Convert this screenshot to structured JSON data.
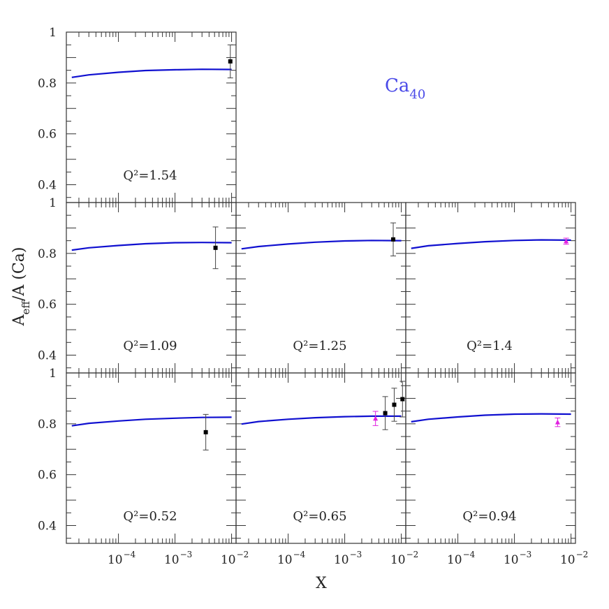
{
  "figure": {
    "title": "Ca",
    "title_subscript": "40",
    "xlabel": "X",
    "ylabel": "A",
    "ylabel_subscript": "eff",
    "ylabel_rest": "/A  (Ca)",
    "title_color": "#4a4ae8",
    "curve_color": "#1010d0",
    "point_color": "#000000",
    "alt_point_color": "#e020e0",
    "y_tick_labels": [
      "0.4",
      "0.6",
      "0.8",
      "1"
    ],
    "x_tick_labels": [
      {
        "base": "10",
        "exp": "−4"
      },
      {
        "base": "10",
        "exp": "−3"
      },
      {
        "base": "10",
        "exp": "−2"
      }
    ]
  },
  "chart_data": [
    {
      "type": "line",
      "panel": "top-left",
      "q2_prefix": "Q²=",
      "q2_value": "1.54",
      "x_scale": "log",
      "xlim": [
        1.2e-05,
        0.012
      ],
      "ylim": [
        0.33,
        1.0
      ],
      "series": [
        {
          "x": [
            1.5e-05,
            3e-05,
            0.0001,
            0.0003,
            0.001,
            0.003,
            0.01
          ],
          "y": [
            0.822,
            0.832,
            0.842,
            0.849,
            0.852,
            0.854,
            0.853
          ]
        }
      ],
      "points": [
        {
          "x": 0.0095,
          "y": 0.885,
          "err": 0.065,
          "marker": "square"
        }
      ]
    },
    {
      "type": "line",
      "panel": "middle-left",
      "q2_prefix": "Q²=",
      "q2_value": "1.09",
      "x_scale": "log",
      "xlim": [
        1.2e-05,
        0.012
      ],
      "ylim": [
        0.33,
        1.0
      ],
      "series": [
        {
          "x": [
            1.5e-05,
            3e-05,
            0.0001,
            0.0003,
            0.001,
            0.003,
            0.01
          ],
          "y": [
            0.813,
            0.822,
            0.831,
            0.838,
            0.842,
            0.843,
            0.842
          ]
        }
      ],
      "points": [
        {
          "x": 0.0052,
          "y": 0.822,
          "err": 0.082,
          "marker": "square"
        }
      ]
    },
    {
      "type": "line",
      "panel": "middle-center",
      "q2_prefix": "Q²=",
      "q2_value": "1.25",
      "x_scale": "log",
      "xlim": [
        1.2e-05,
        0.012
      ],
      "ylim": [
        0.33,
        1.0
      ],
      "series": [
        {
          "x": [
            1.5e-05,
            3e-05,
            0.0001,
            0.0003,
            0.001,
            0.003,
            0.01
          ],
          "y": [
            0.818,
            0.827,
            0.837,
            0.844,
            0.849,
            0.851,
            0.85
          ]
        }
      ],
      "points": [
        {
          "x": 0.0072,
          "y": 0.855,
          "err": 0.065,
          "marker": "square"
        }
      ]
    },
    {
      "type": "line",
      "panel": "middle-right",
      "q2_prefix": "Q²=",
      "q2_value": "1.4",
      "x_scale": "log",
      "xlim": [
        1.2e-05,
        0.012
      ],
      "ylim": [
        0.33,
        1.0
      ],
      "series": [
        {
          "x": [
            1.5e-05,
            3e-05,
            0.0001,
            0.0003,
            0.001,
            0.003,
            0.01
          ],
          "y": [
            0.82,
            0.83,
            0.839,
            0.846,
            0.851,
            0.853,
            0.852
          ]
        }
      ],
      "points": [
        {
          "x": 0.0082,
          "y": 0.848,
          "err": 0.012,
          "marker": "triangle"
        }
      ]
    },
    {
      "type": "line",
      "panel": "bottom-left",
      "q2_prefix": "Q²=",
      "q2_value": "0.52",
      "x_scale": "log",
      "xlim": [
        1.2e-05,
        0.012
      ],
      "ylim": [
        0.33,
        1.0
      ],
      "series": [
        {
          "x": [
            1.5e-05,
            3e-05,
            0.0001,
            0.0003,
            0.001,
            0.003,
            0.01
          ],
          "y": [
            0.792,
            0.802,
            0.811,
            0.818,
            0.822,
            0.825,
            0.826
          ]
        }
      ],
      "points": [
        {
          "x": 0.0035,
          "y": 0.767,
          "err": 0.07,
          "marker": "square"
        }
      ]
    },
    {
      "type": "line",
      "panel": "bottom-center",
      "q2_prefix": "Q²=",
      "q2_value": "0.65",
      "x_scale": "log",
      "xlim": [
        1.2e-05,
        0.012
      ],
      "ylim": [
        0.33,
        1.0
      ],
      "series": [
        {
          "x": [
            1.5e-05,
            3e-05,
            0.0001,
            0.0003,
            0.001,
            0.003,
            0.01
          ],
          "y": [
            0.799,
            0.809,
            0.818,
            0.824,
            0.828,
            0.83,
            0.83
          ]
        }
      ],
      "points": [
        {
          "x": 0.0035,
          "y": 0.821,
          "err": 0.028,
          "marker": "triangle"
        },
        {
          "x": 0.0052,
          "y": 0.842,
          "err": 0.065,
          "marker": "square"
        },
        {
          "x": 0.0075,
          "y": 0.875,
          "err": 0.065,
          "marker": "square"
        },
        {
          "x": 0.0105,
          "y": 0.897,
          "err": 0.07,
          "marker": "square"
        }
      ]
    },
    {
      "type": "line",
      "panel": "bottom-right",
      "q2_prefix": "Q²=",
      "q2_value": "0.94",
      "x_scale": "log",
      "xlim": [
        1.2e-05,
        0.012
      ],
      "ylim": [
        0.33,
        1.0
      ],
      "series": [
        {
          "x": [
            1.5e-05,
            3e-05,
            0.0001,
            0.0003,
            0.001,
            0.003,
            0.01
          ],
          "y": [
            0.808,
            0.818,
            0.827,
            0.834,
            0.838,
            0.839,
            0.838
          ]
        }
      ],
      "points": [
        {
          "x": 0.0058,
          "y": 0.806,
          "err": 0.017,
          "marker": "triangle"
        }
      ]
    }
  ]
}
